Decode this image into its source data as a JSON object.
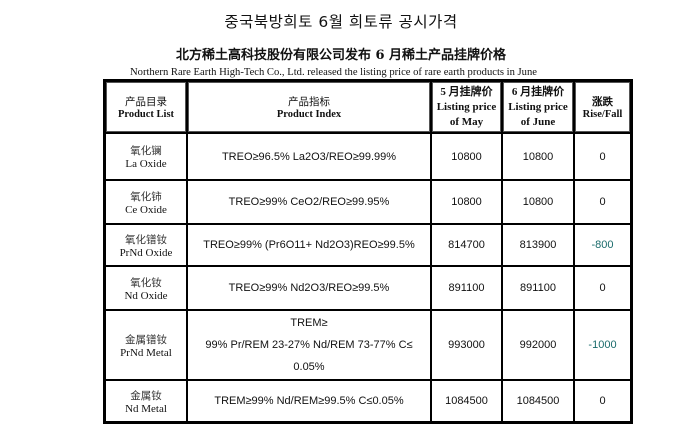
{
  "titles": {
    "korean": "중국북방희토 6월 희토류 공시가격",
    "chinese": "北方稀土高科技股份有限公司发布 6 月稀土产品挂牌价格",
    "english": "Northern Rare Earth High-Tech Co., Ltd. released the listing price of rare earth products in June"
  },
  "table": {
    "headers": {
      "product_list_cn": "产品目录",
      "product_list_en": "Product List",
      "product_index_cn": "产品指标",
      "product_index_en": "Product Index",
      "may_cn": "5 月挂牌价",
      "may_en_1": "Listing price",
      "may_en_2": "of May",
      "june_cn": "6 月挂牌价",
      "june_en_1": "Listing price",
      "june_en_2": "of June",
      "change_cn": "涨跌",
      "change_en": "Rise/Fall"
    },
    "rows": [
      {
        "name_cn": "氧化镧",
        "name_en": "La Oxide",
        "index": "TREO≥96.5%  La2O3/REO≥99.99%",
        "may": "10800",
        "june": "10800",
        "change": "0"
      },
      {
        "name_cn": "氧化铈",
        "name_en": "Ce Oxide",
        "index": "TREO≥99%   CeO2/REO≥99.95%",
        "may": "10800",
        "june": "10800",
        "change": "0"
      },
      {
        "name_cn": "氧化镨钕",
        "name_en": "PrNd Oxide",
        "index": "TREO≥99%  (Pr6O11+ Nd2O3)REO≥99.5%",
        "may": "814700",
        "june": "813900",
        "change": "-800"
      },
      {
        "name_cn": "氧化钕",
        "name_en": "Nd Oxide",
        "index": "TREO≥99%  Nd2O3/REO≥99.5%",
        "may": "891100",
        "june": "891100",
        "change": "0"
      },
      {
        "name_cn": "金属镨钕",
        "name_en": "PrNd Metal",
        "index_1": "TREM≥",
        "index_2": "99%  Pr/REM 23-27%   Nd/REM 73-77%   C≤",
        "index_3": "0.05%",
        "may": "993000",
        "june": "992000",
        "change": "-1000"
      },
      {
        "name_cn": "金属钕",
        "name_en": "Nd Metal",
        "index": "TREM≥99%  Nd/REM≥99.5%  C≤0.05%",
        "may": "1084500",
        "june": "1084500",
        "change": "0"
      }
    ]
  },
  "colors": {
    "negative_change": "#1a6b6b"
  }
}
